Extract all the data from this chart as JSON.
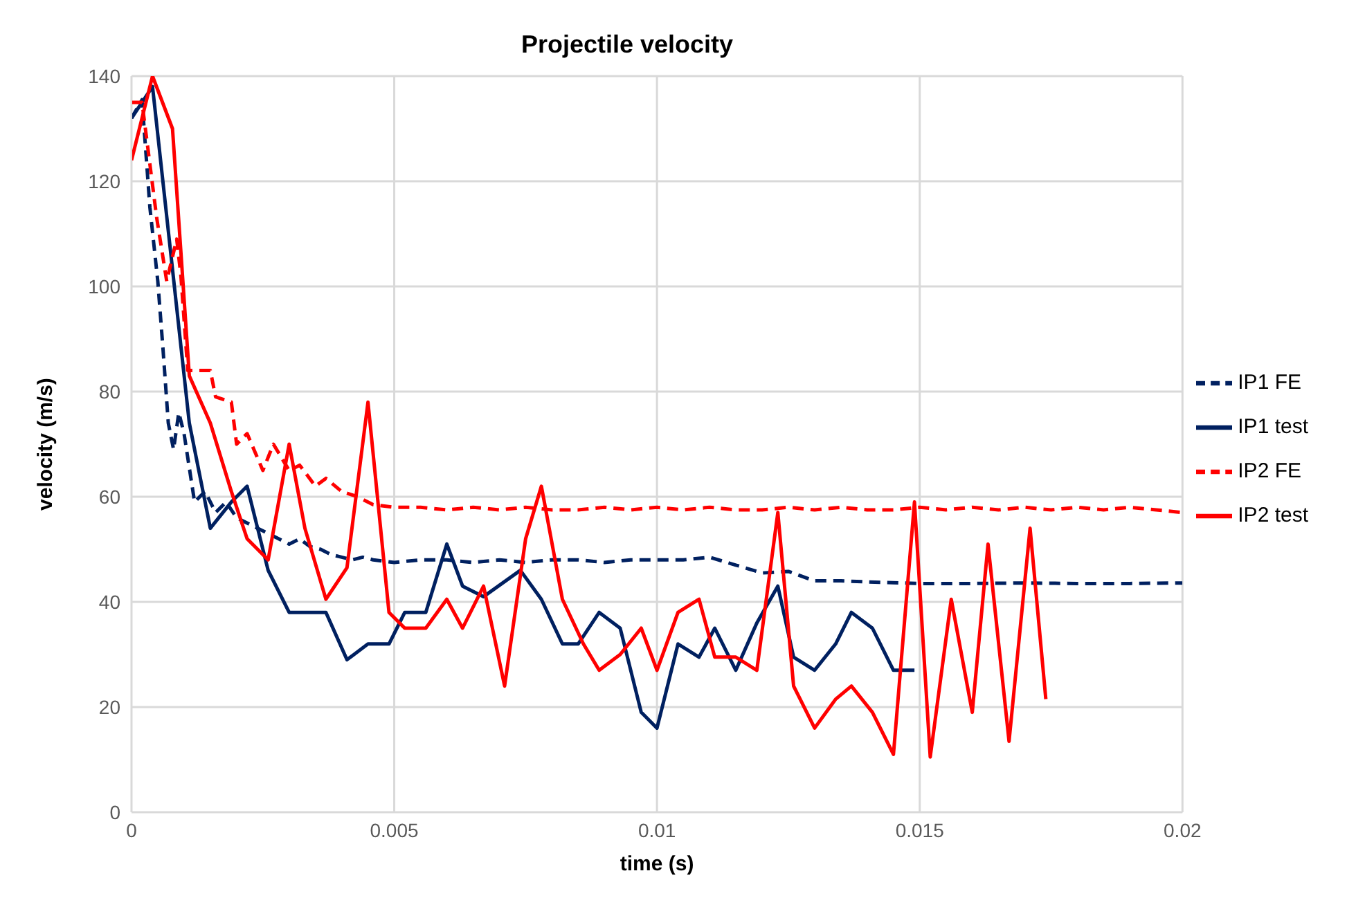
{
  "chart_data": {
    "type": "line",
    "title": "Projectile velocity",
    "xlabel": "time (s)",
    "ylabel": "velocity (m/s)",
    "xlim": [
      0,
      0.02
    ],
    "xticks": [
      0,
      0.005,
      0.01,
      0.015,
      0.02
    ],
    "ylim": [
      0,
      140
    ],
    "yticks": [
      0,
      20,
      40,
      60,
      80,
      100,
      120,
      140
    ],
    "grid": true,
    "legend": "right",
    "marker": "none",
    "series": [
      {
        "name": "IP1 FE",
        "color": "#002060",
        "line_style": "dashed",
        "x": [
          0,
          0.0002,
          0.00035,
          0.0005,
          0.0006,
          0.0007,
          0.0008,
          0.0009,
          0.001,
          0.0012,
          0.0014,
          0.0016,
          0.0018,
          0.002,
          0.0022,
          0.0024,
          0.0026,
          0.0028,
          0.003,
          0.0032,
          0.0034,
          0.0036,
          0.0038,
          0.004,
          0.0042,
          0.0044,
          0.0046,
          0.005,
          0.0055,
          0.006,
          0.0065,
          0.007,
          0.0075,
          0.008,
          0.0085,
          0.009,
          0.0095,
          0.01,
          0.0105,
          0.011,
          0.0115,
          0.012,
          0.0125,
          0.013,
          0.0135,
          0.014,
          0.015,
          0.016,
          0.017,
          0.018,
          0.019,
          0.02
        ],
        "values": [
          132,
          135.5,
          115,
          101,
          88,
          74,
          69,
          76,
          72,
          59,
          61,
          57,
          59,
          56,
          55,
          54,
          53,
          52,
          51,
          52,
          50.5,
          50,
          49,
          48.5,
          48,
          48.5,
          48,
          47.5,
          48,
          48,
          47.5,
          48,
          47.5,
          48,
          48,
          47.5,
          48,
          48,
          48,
          48.5,
          47,
          45.5,
          45.8,
          44,
          44,
          43.8,
          43.5,
          43.5,
          43.6,
          43.5,
          43.5,
          43.6
        ]
      },
      {
        "name": "IP1 test",
        "color": "#002060",
        "line_style": "solid",
        "x": [
          0,
          0.0004,
          0.0011,
          0.0015,
          0.0019,
          0.0022,
          0.0026,
          0.003,
          0.0034,
          0.0037,
          0.0041,
          0.0045,
          0.0049,
          0.0052,
          0.0056,
          0.006,
          0.0063,
          0.0067,
          0.0074,
          0.0078,
          0.0082,
          0.0085,
          0.0089,
          0.0093,
          0.0097,
          0.01,
          0.0104,
          0.0108,
          0.0111,
          0.0115,
          0.0119,
          0.0123,
          0.0126,
          0.013,
          0.0134,
          0.0137,
          0.0141,
          0.0145,
          0.0149
        ],
        "values": [
          132,
          138,
          74,
          54,
          59,
          62,
          46,
          38,
          38,
          38,
          29,
          32,
          32,
          38,
          38,
          51,
          43,
          41,
          46,
          40.5,
          32,
          32,
          38,
          35,
          19,
          16,
          32,
          29.5,
          35,
          27,
          36,
          43,
          29.5,
          27,
          32,
          38,
          35,
          27,
          27
        ]
      },
      {
        "name": "IP2 FE",
        "color": "#ff0000",
        "line_style": "dashed",
        "x": [
          0,
          0.0002,
          0.00048,
          0.00067,
          0.00086,
          0.00094,
          0.00107,
          0.0013,
          0.0015,
          0.0016,
          0.0019,
          0.002,
          0.0022,
          0.0025,
          0.0027,
          0.003,
          0.0032,
          0.0035,
          0.0037,
          0.004,
          0.0043,
          0.0046,
          0.005,
          0.0055,
          0.006,
          0.0065,
          0.007,
          0.0075,
          0.008,
          0.0085,
          0.009,
          0.0095,
          0.01,
          0.0105,
          0.011,
          0.0115,
          0.012,
          0.0125,
          0.013,
          0.0135,
          0.014,
          0.0145,
          0.015,
          0.0155,
          0.016,
          0.0165,
          0.017,
          0.0175,
          0.018,
          0.0185,
          0.019,
          0.0195,
          0.02
        ],
        "values": [
          135,
          135,
          113,
          101,
          109,
          102,
          84,
          84,
          84,
          79,
          78,
          70,
          72,
          65,
          70,
          65,
          66,
          62,
          63.5,
          61,
          60,
          58.5,
          58,
          58,
          57.5,
          58,
          57.5,
          58,
          57.5,
          57.5,
          58,
          57.5,
          58,
          57.5,
          58,
          57.5,
          57.5,
          58,
          57.5,
          58,
          57.5,
          57.5,
          58,
          57.5,
          58,
          57.5,
          58,
          57.5,
          58,
          57.5,
          58,
          57.5,
          57
        ]
      },
      {
        "name": "IP2 test",
        "color": "#ff0000",
        "line_style": "solid",
        "x": [
          0,
          0.0004,
          0.00078,
          0.0011,
          0.0015,
          0.0019,
          0.0022,
          0.0026,
          0.003,
          0.0033,
          0.0037,
          0.0041,
          0.0045,
          0.0049,
          0.0052,
          0.0056,
          0.006,
          0.0063,
          0.0067,
          0.0071,
          0.0075,
          0.0078,
          0.0082,
          0.0086,
          0.0089,
          0.0093,
          0.0097,
          0.01,
          0.0104,
          0.0108,
          0.0111,
          0.0115,
          0.0119,
          0.0123,
          0.0126,
          0.013,
          0.0134,
          0.0137,
          0.0141,
          0.0145,
          0.0149,
          0.0152,
          0.0156,
          0.016,
          0.0163,
          0.0167,
          0.0171,
          0.0174
        ],
        "values": [
          124,
          140,
          130,
          83,
          74,
          61,
          52,
          48,
          70,
          54,
          40.5,
          46.5,
          78,
          38,
          35,
          35,
          40.5,
          35,
          43,
          24,
          52,
          62,
          40.5,
          32,
          27,
          30,
          35,
          27,
          38,
          40.5,
          29.5,
          29.5,
          27,
          57,
          24,
          16,
          21.5,
          24,
          19,
          11,
          59,
          10.5,
          40.5,
          19,
          51,
          13.5,
          54,
          21.5
        ]
      }
    ]
  }
}
